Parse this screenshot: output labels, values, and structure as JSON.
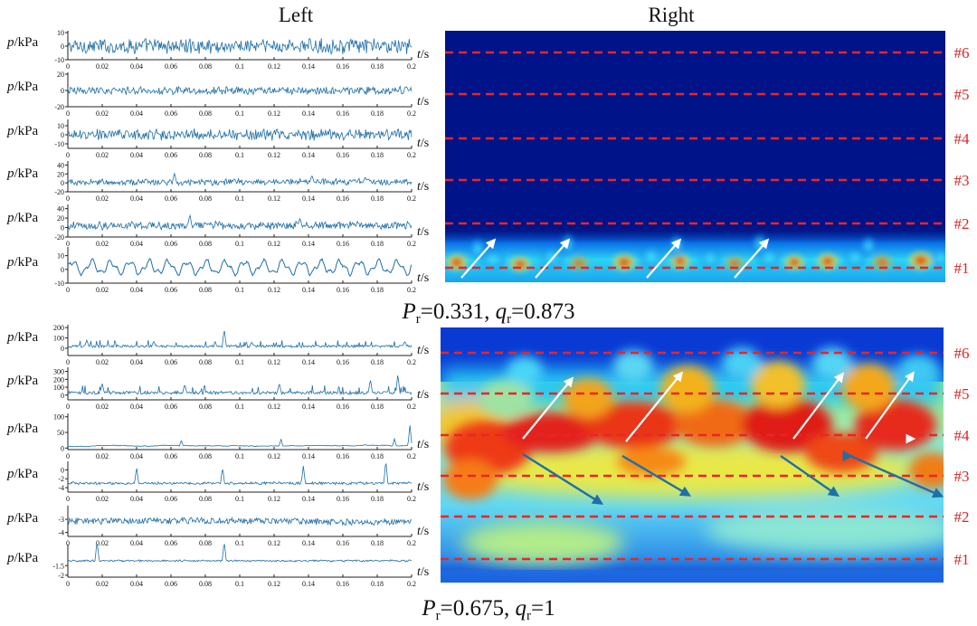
{
  "headings": {
    "left": "Left",
    "right": "Right"
  },
  "colors": {
    "signal": "#1f6fa8",
    "probe_line": "#e8252b",
    "probe_label": "#d12a2a",
    "arrow_up": "#ffffff",
    "arrow_down": "#1f6fa8"
  },
  "time_axis": {
    "label_var": "t",
    "label_unit": "/s",
    "xlim": [
      0,
      0.2
    ],
    "ticks": [
      "0",
      "0.02",
      "0.04",
      "0.06",
      "0.08",
      "0.1",
      "0.12",
      "0.14",
      "0.16",
      "0.18",
      "0.2"
    ]
  },
  "y_axis_label": {
    "var": "p",
    "unit": "/kPa"
  },
  "chart_data": [
    {
      "type": "line",
      "caption": {
        "P_value": "0.331",
        "q_value": "0.873"
      },
      "panels": [
        {
          "name": "#6",
          "ylim": [
            -10,
            10
          ],
          "ytick_labels": [
            "10",
            "0",
            "-10"
          ],
          "style": "noise",
          "mean": 0,
          "amp": 4.5,
          "spikes": []
        },
        {
          "name": "#5",
          "ylim": [
            -20,
            20
          ],
          "ytick_labels": [
            "20",
            "0",
            "-20"
          ],
          "style": "noise",
          "mean": 0,
          "amp": 4,
          "spikes": []
        },
        {
          "name": "#4",
          "ylim": [
            -15,
            15
          ],
          "ytick_labels": [
            "10",
            "0",
            "-10"
          ],
          "style": "noise",
          "mean": 0,
          "amp": 5,
          "spikes": []
        },
        {
          "name": "#3",
          "ylim": [
            -20,
            45
          ],
          "ytick_labels": [
            "40",
            "20",
            "0",
            "-20"
          ],
          "style": "noise",
          "mean": 2,
          "amp": 6,
          "spikes": [
            [
              0.062,
              22
            ],
            [
              0.142,
              18
            ],
            [
              0.173,
              14
            ]
          ]
        },
        {
          "name": "#2",
          "ylim": [
            -20,
            45
          ],
          "ytick_labels": [
            "40",
            "20",
            "0",
            "-20"
          ],
          "style": "noise",
          "mean": 4,
          "amp": 7,
          "spikes": [
            [
              0.071,
              28
            ],
            [
              0.135,
              20
            ]
          ]
        },
        {
          "name": "#1",
          "ylim": [
            -10,
            15
          ],
          "ytick_labels": [
            "10",
            "0",
            "-10"
          ],
          "style": "wave",
          "mean": 1.5,
          "amp": 5.5,
          "spikes": []
        }
      ],
      "heatmap": {
        "type": "heatmap",
        "probe_labels": [
          "#6",
          "#5",
          "#4",
          "#3",
          "#2",
          "#1"
        ],
        "arrows_up_count": 4,
        "arrows_down_count": 0
      }
    },
    {
      "type": "line",
      "caption": {
        "P_value": "0.675",
        "q_value": "1"
      },
      "panels": [
        {
          "name": "#6",
          "ylim": [
            -70,
            210
          ],
          "ytick_labels": [
            "200",
            "100",
            "0"
          ],
          "style": "spiky",
          "mean": 20,
          "amp": 12,
          "spikes": [
            [
              0.011,
              80
            ],
            [
              0.05,
              70
            ],
            [
              0.091,
              190
            ],
            [
              0.107,
              60
            ],
            [
              0.196,
              70
            ]
          ]
        },
        {
          "name": "#5",
          "ylim": [
            -60,
            330
          ],
          "ytick_labels": [
            "300",
            "200",
            "100",
            "0"
          ],
          "style": "spiky",
          "mean": 30,
          "amp": 20,
          "spikes": [
            [
              0.02,
              150
            ],
            [
              0.068,
              140
            ],
            [
              0.123,
              150
            ],
            [
              0.176,
              200
            ],
            [
              0.192,
              270
            ]
          ]
        },
        {
          "name": "#4",
          "ylim": [
            -5,
            105
          ],
          "ytick_labels": [
            "100",
            "50",
            "0"
          ],
          "style": "smooth",
          "mean": 4,
          "amp": 5,
          "spikes": [
            [
              0.066,
              25
            ],
            [
              0.124,
              30
            ],
            [
              0.19,
              30
            ],
            [
              0.199,
              75
            ]
          ]
        },
        {
          "name": "#3",
          "ylim": [
            -5,
            1.5
          ],
          "ytick_labels": [
            "0",
            "-2",
            "-4"
          ],
          "style": "noise",
          "mean": -3.0,
          "amp": 0.25,
          "spikes": [
            [
              0.04,
              0.6
            ],
            [
              0.09,
              0.6
            ],
            [
              0.137,
              0.9
            ],
            [
              0.185,
              2.2
            ]
          ]
        },
        {
          "name": "#2",
          "ylim": [
            -4.3,
            -2.1
          ],
          "ytick_labels": [
            "-3",
            "-4"
          ],
          "style": "dense",
          "mean": -3.15,
          "amp": 0.12,
          "spikes": []
        },
        {
          "name": "#1",
          "ylim": [
            -2.1,
            -0.5
          ],
          "ytick_labels": [
            "-1.5",
            "-2"
          ],
          "style": "noise",
          "mean": -1.25,
          "amp": 0.04,
          "spikes": [
            [
              0.017,
              -0.2
            ],
            [
              0.091,
              -0.2
            ]
          ]
        }
      ],
      "heatmap": {
        "type": "heatmap",
        "probe_labels": [
          "#6",
          "#5",
          "#4",
          "#3",
          "#2",
          "#1"
        ],
        "arrows_up_count": 5,
        "arrows_down_count": 5
      }
    }
  ]
}
